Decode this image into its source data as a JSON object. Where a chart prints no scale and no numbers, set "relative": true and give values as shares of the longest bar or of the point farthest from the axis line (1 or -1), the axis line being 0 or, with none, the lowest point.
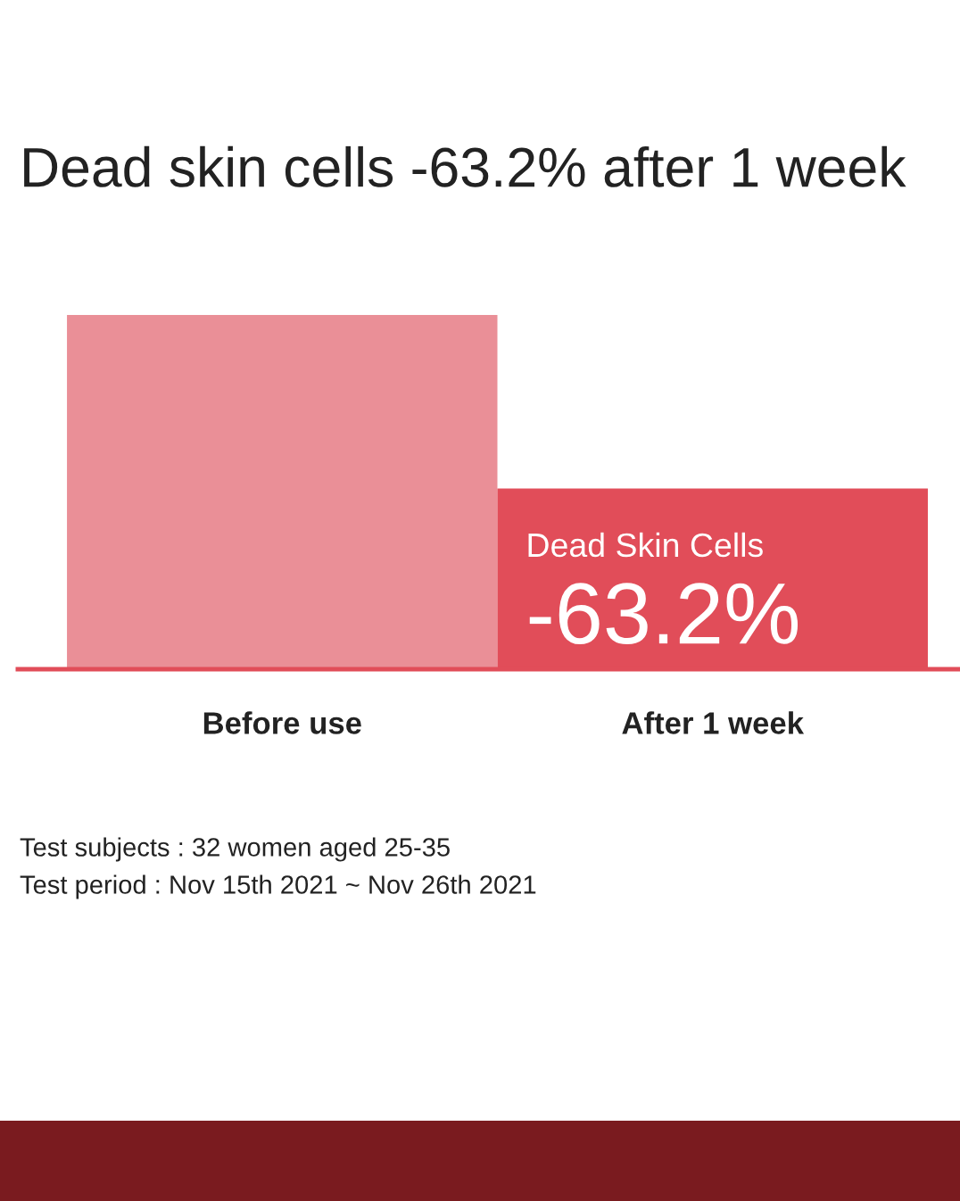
{
  "chart_data": {
    "type": "bar",
    "title": "Dead skin cells -63.2% after 1 week",
    "categories": [
      "Before use",
      "After 1 week"
    ],
    "relative": true,
    "values": [
      1,
      0.51
    ],
    "colors": [
      "#ea8f97",
      "#e14d59"
    ],
    "annotations": [
      {
        "text": "Dead Skin Cells",
        "x": "After 1 week",
        "y": 0.51
      },
      {
        "text": "-63.2%",
        "x": "After 1 week",
        "y": 0.51
      },
      "Test subjects : 32 women aged 25-35",
      "Test period : Nov 15th 2021 ~ Nov 26th 2021"
    ]
  }
}
